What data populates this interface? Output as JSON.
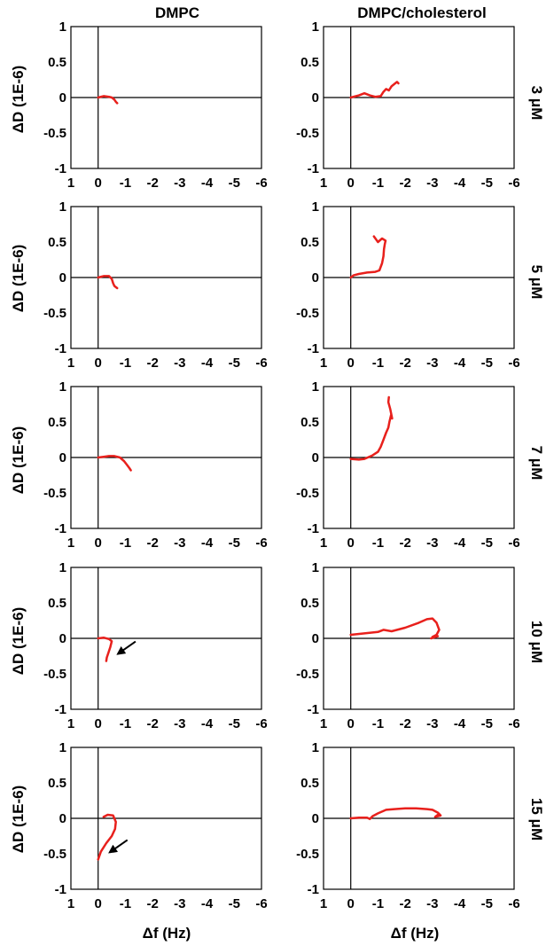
{
  "column_titles": [
    "DMPC",
    "DMPC/cholesterol"
  ],
  "ylabel": "ΔD (1E-6)",
  "xlabel": "Δf (Hz)",
  "row_labels": [
    "3 μM",
    "5 μM",
    "7 μM",
    "10 μM",
    "15 μM"
  ],
  "colors": {
    "series": "#e8201c",
    "axis": "#000000",
    "arrow": "#000000"
  },
  "chart_data": [
    {
      "type": "line",
      "row": "3 μM",
      "column": "DMPC",
      "xlim": [
        1,
        -6
      ],
      "ylim": [
        -1,
        1
      ],
      "xticks": [
        1,
        0,
        -1,
        -2,
        -3,
        -4,
        -5,
        -6
      ],
      "yticks": [
        1,
        0.5,
        0,
        -0.5,
        -1
      ],
      "arrow": false,
      "x": [
        0,
        -0.2,
        -0.4,
        -0.5,
        -0.6,
        -0.65,
        -0.7
      ],
      "y": [
        0,
        0.02,
        0.01,
        0,
        -0.03,
        -0.06,
        -0.08
      ]
    },
    {
      "type": "line",
      "row": "3 μM",
      "column": "DMPC/cholesterol",
      "xlim": [
        1,
        -6
      ],
      "ylim": [
        -1,
        1
      ],
      "xticks": [
        1,
        0,
        -1,
        -2,
        -3,
        -4,
        -5,
        -6
      ],
      "yticks": [
        1,
        0.5,
        0,
        -0.5,
        -1
      ],
      "arrow": false,
      "x": [
        0,
        -0.3,
        -0.5,
        -0.7,
        -0.9,
        -1.1,
        -1.2,
        -1.3,
        -1.4,
        -1.5,
        -1.6,
        -1.7,
        -1.75
      ],
      "y": [
        0,
        0.03,
        0.06,
        0.03,
        0.01,
        0.02,
        0.08,
        0.12,
        0.1,
        0.16,
        0.19,
        0.22,
        0.2
      ]
    },
    {
      "type": "line",
      "row": "5 μM",
      "column": "DMPC",
      "xlim": [
        1,
        -6
      ],
      "ylim": [
        -1,
        1
      ],
      "xticks": [
        1,
        0,
        -1,
        -2,
        -3,
        -4,
        -5,
        -6
      ],
      "yticks": [
        1,
        0.5,
        0,
        -0.5,
        -1
      ],
      "arrow": false,
      "x": [
        0,
        -0.2,
        -0.4,
        -0.5,
        -0.55,
        -0.6,
        -0.7
      ],
      "y": [
        0,
        0.02,
        0.02,
        -0.02,
        -0.08,
        -0.12,
        -0.15
      ]
    },
    {
      "type": "line",
      "row": "5 μM",
      "column": "DMPC/cholesterol",
      "xlim": [
        1,
        -6
      ],
      "ylim": [
        -1,
        1
      ],
      "xticks": [
        1,
        0,
        -1,
        -2,
        -3,
        -4,
        -5,
        -6
      ],
      "yticks": [
        1,
        0.5,
        0,
        -0.5,
        -1
      ],
      "arrow": false,
      "x": [
        0,
        -0.1,
        -0.3,
        -0.6,
        -0.9,
        -1.05,
        -1.15,
        -1.2,
        -1.22,
        -1.25,
        -1.28,
        -1.15,
        -1.0,
        -0.85
      ],
      "y": [
        0,
        0.03,
        0.05,
        0.07,
        0.08,
        0.1,
        0.2,
        0.3,
        0.4,
        0.47,
        0.52,
        0.55,
        0.5,
        0.58
      ]
    },
    {
      "type": "line",
      "row": "7 μM",
      "column": "DMPC",
      "xlim": [
        1,
        -6
      ],
      "ylim": [
        -1,
        1
      ],
      "xticks": [
        1,
        0,
        -1,
        -2,
        -3,
        -4,
        -5,
        -6
      ],
      "yticks": [
        1,
        0.5,
        0,
        -0.5,
        -1
      ],
      "arrow": false,
      "x": [
        0,
        -0.2,
        -0.4,
        -0.6,
        -0.8,
        -0.95,
        -1.05,
        -1.15,
        -1.2
      ],
      "y": [
        0,
        0.01,
        0.02,
        0.02,
        0,
        -0.05,
        -0.1,
        -0.15,
        -0.18
      ]
    },
    {
      "type": "line",
      "row": "7 μM",
      "column": "DMPC/cholesterol",
      "xlim": [
        1,
        -6
      ],
      "ylim": [
        -1,
        1
      ],
      "xticks": [
        1,
        0,
        -1,
        -2,
        -3,
        -4,
        -5,
        -6
      ],
      "yticks": [
        1,
        0.5,
        0,
        -0.5,
        -1
      ],
      "arrow": false,
      "x": [
        0,
        -0.3,
        -0.5,
        -0.8,
        -1.0,
        -1.1,
        -1.2,
        -1.3,
        -1.38,
        -1.42,
        -1.48,
        -1.52,
        -1.45,
        -1.38,
        -1.4
      ],
      "y": [
        -0.02,
        -0.03,
        -0.02,
        0.03,
        0.08,
        0.15,
        0.25,
        0.35,
        0.42,
        0.5,
        0.6,
        0.55,
        0.68,
        0.78,
        0.85
      ]
    },
    {
      "type": "line",
      "row": "10 μM",
      "column": "DMPC",
      "xlim": [
        1,
        -6
      ],
      "ylim": [
        -1,
        1
      ],
      "xticks": [
        1,
        0,
        -1,
        -2,
        -3,
        -4,
        -5,
        -6
      ],
      "yticks": [
        1,
        0.5,
        0,
        -0.5,
        -1
      ],
      "arrow": true,
      "x": [
        0,
        -0.2,
        -0.4,
        -0.5,
        -0.45,
        -0.38,
        -0.32,
        -0.3
      ],
      "y": [
        0,
        0.01,
        -0.01,
        -0.04,
        -0.12,
        -0.2,
        -0.27,
        -0.32
      ]
    },
    {
      "type": "line",
      "row": "10 μM",
      "column": "DMPC/cholesterol",
      "xlim": [
        1,
        -6
      ],
      "ylim": [
        -1,
        1
      ],
      "xticks": [
        1,
        0,
        -1,
        -2,
        -3,
        -4,
        -5,
        -6
      ],
      "yticks": [
        1,
        0.5,
        0,
        -0.5,
        -1
      ],
      "arrow": false,
      "x": [
        0,
        -0.5,
        -1.0,
        -1.2,
        -1.5,
        -2.0,
        -2.5,
        -2.8,
        -3.0,
        -3.15,
        -3.25,
        -3.15,
        -3.0,
        -3.2,
        -2.95
      ],
      "y": [
        0.05,
        0.07,
        0.09,
        0.12,
        0.1,
        0.15,
        0.22,
        0.27,
        0.28,
        0.22,
        0.12,
        0.05,
        0.02,
        0.03,
        0
      ]
    },
    {
      "type": "line",
      "row": "15 μM",
      "column": "DMPC",
      "xlim": [
        1,
        -6
      ],
      "ylim": [
        -1,
        1
      ],
      "xticks": [
        1,
        0,
        -1,
        -2,
        -3,
        -4,
        -5,
        -6
      ],
      "yticks": [
        1,
        0.5,
        0,
        -0.5,
        -1
      ],
      "arrow": true,
      "x": [
        -0.2,
        -0.35,
        -0.55,
        -0.65,
        -0.62,
        -0.5,
        -0.3,
        -0.1,
        0
      ],
      "y": [
        0.02,
        0.05,
        0.04,
        -0.05,
        -0.15,
        -0.25,
        -0.35,
        -0.47,
        -0.58
      ]
    },
    {
      "type": "line",
      "row": "15 μM",
      "column": "DMPC/cholesterol",
      "xlim": [
        1,
        -6
      ],
      "ylim": [
        -1,
        1
      ],
      "xticks": [
        1,
        0,
        -1,
        -2,
        -3,
        -4,
        -5,
        -6
      ],
      "yticks": [
        1,
        0.5,
        0,
        -0.5,
        -1
      ],
      "arrow": false,
      "x": [
        0,
        -0.3,
        -0.6,
        -0.7,
        -0.8,
        -1.0,
        -1.3,
        -1.6,
        -2.0,
        -2.4,
        -2.8,
        -3.0,
        -3.2,
        -3.3,
        -3.1,
        -3.2
      ],
      "y": [
        0,
        0.01,
        0.01,
        -0.01,
        0.03,
        0.07,
        0.12,
        0.13,
        0.14,
        0.14,
        0.13,
        0.12,
        0.08,
        0.04,
        0.02,
        0.05
      ]
    }
  ]
}
